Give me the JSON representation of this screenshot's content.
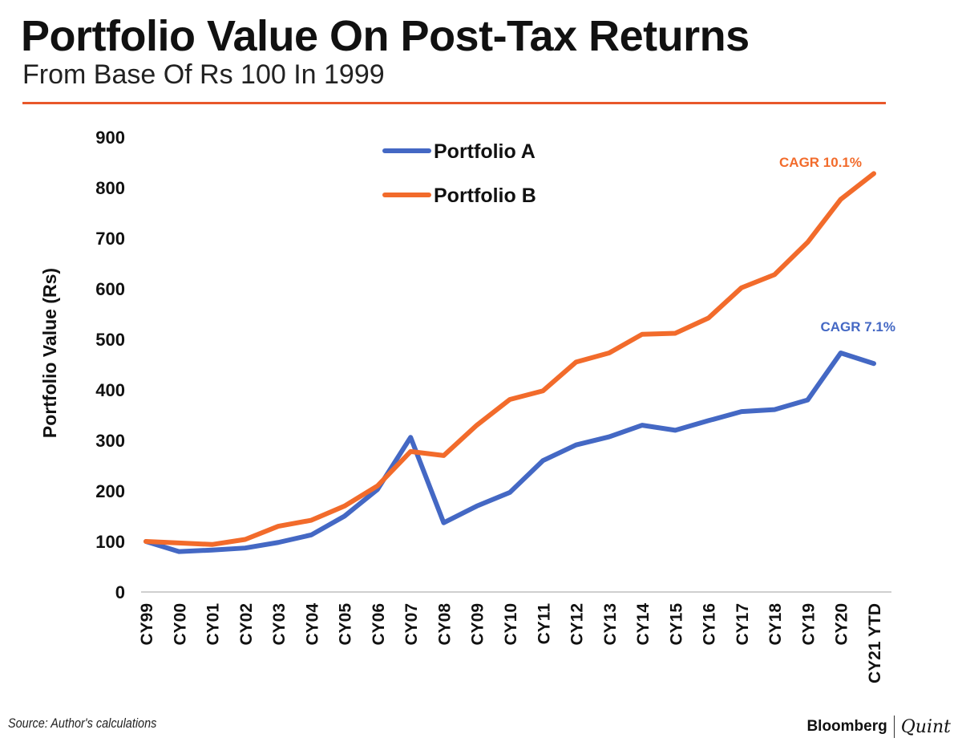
{
  "header": {
    "title": "Portfolio Value On Post-Tax Returns",
    "subtitle": "From Base Of Rs 100 In 1999"
  },
  "footer": {
    "source": "Source: Author's calculations",
    "logo_left": "Bloomberg",
    "logo_right": "Quint"
  },
  "chart_data": {
    "type": "line",
    "title": "Portfolio Value On Post-Tax Returns",
    "subtitle": "From Base Of Rs 100 In 1999",
    "xlabel": "",
    "ylabel": "Portfolio Value (Rs)",
    "ylim": [
      0,
      900
    ],
    "yticks": [
      0,
      100,
      200,
      300,
      400,
      500,
      600,
      700,
      800,
      900
    ],
    "grid": false,
    "legend_position": "top-center",
    "categories": [
      "CY99",
      "CY00",
      "CY01",
      "CY02",
      "CY03",
      "CY04",
      "CY05",
      "CY06",
      "CY07",
      "CY08",
      "CY09",
      "CY10",
      "CY11",
      "CY12",
      "CY13",
      "CY14",
      "CY15",
      "CY16",
      "CY17",
      "CY18",
      "CY19",
      "CY20",
      "CY21 YTD"
    ],
    "series": [
      {
        "name": "Portfolio A",
        "color": "#4468c4",
        "values": [
          100,
          80,
          83,
          87,
          98,
          113,
          150,
          203,
          306,
          137,
          170,
          197,
          260,
          291,
          307,
          330,
          320,
          339,
          357,
          361,
          380,
          473,
          452
        ],
        "annotation": "CAGR 7.1%"
      },
      {
        "name": "Portfolio B",
        "color": "#f26b2b",
        "values": [
          100,
          97,
          94,
          104,
          130,
          142,
          170,
          210,
          278,
          270,
          330,
          381,
          398,
          455,
          473,
          510,
          512,
          542,
          602,
          628,
          692,
          777,
          828
        ],
        "annotation": "CAGR 10.1%"
      }
    ]
  }
}
